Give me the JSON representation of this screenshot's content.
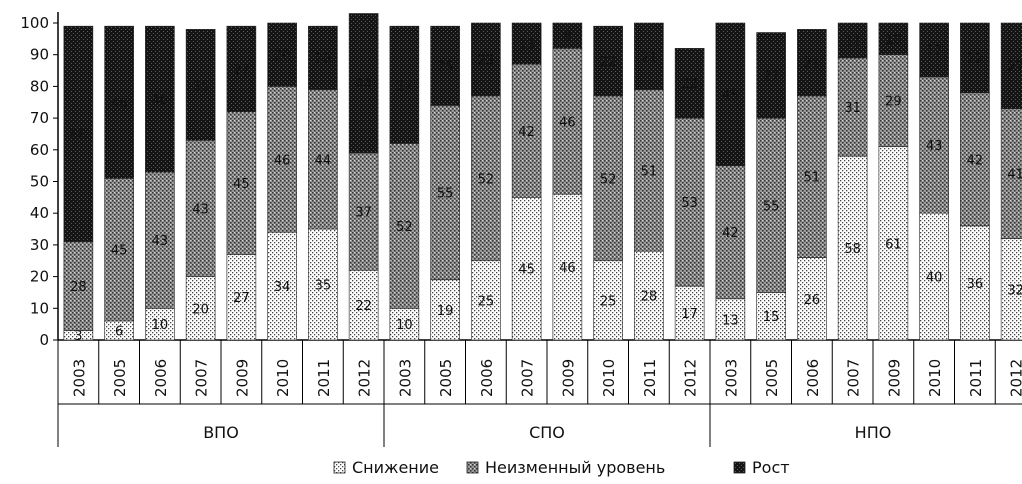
{
  "chart_data": {
    "type": "bar",
    "stacked": true,
    "ylim": [
      0,
      100
    ],
    "yticks": [
      0,
      10,
      20,
      30,
      40,
      50,
      60,
      70,
      80,
      90,
      100
    ],
    "groups": [
      {
        "name": "ВПО",
        "categories": [
          "2003",
          "2005",
          "2006",
          "2007",
          "2009",
          "2010",
          "2011",
          "2012"
        ]
      },
      {
        "name": "СПО",
        "categories": [
          "2003",
          "2005",
          "2006",
          "2007",
          "2009",
          "2010",
          "2011",
          "2012"
        ]
      },
      {
        "name": "НПО",
        "categories": [
          "2003",
          "2005",
          "2006",
          "2007",
          "2009",
          "2010",
          "2011",
          "2012"
        ]
      }
    ],
    "series": [
      {
        "name": "Снижение",
        "pattern": "light-dots",
        "values": [
          3,
          6,
          10,
          20,
          27,
          34,
          35,
          22,
          10,
          19,
          25,
          45,
          46,
          25,
          28,
          17,
          13,
          15,
          26,
          58,
          61,
          40,
          36,
          32
        ]
      },
      {
        "name": "Неизменный уровень",
        "pattern": "medium-cross",
        "values": [
          28,
          45,
          43,
          43,
          45,
          46,
          44,
          37,
          52,
          55,
          52,
          42,
          46,
          52,
          51,
          53,
          42,
          55,
          51,
          31,
          29,
          43,
          42,
          41
        ]
      },
      {
        "name": "Рост",
        "pattern": "dark-dots",
        "values": [
          68,
          48,
          46,
          35,
          27,
          20,
          20,
          44,
          37,
          25,
          23,
          13,
          8,
          22,
          21,
          22,
          45,
          27,
          21,
          11,
          10,
          17,
          22,
          27
        ]
      }
    ],
    "legend_position": "bottom-center"
  }
}
